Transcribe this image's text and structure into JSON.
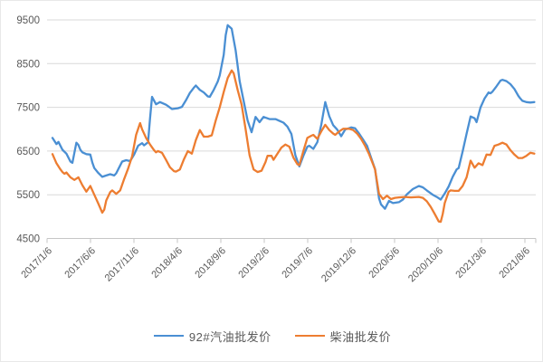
{
  "chart_data": {
    "type": "line",
    "title": "",
    "grid": "horizontal",
    "legend_position": "bottom",
    "colors": {
      "gridline": "#d9d9d9",
      "axis_line": "#c6c6c6",
      "tick_label": "#595959",
      "series_gasoline": "#4a8fd3",
      "series_diesel": "#ed7d31"
    },
    "y_axis": {
      "min": 4500,
      "max": 9500,
      "step": 1000,
      "ticks": [
        "9500",
        "8500",
        "7500",
        "6500",
        "5500",
        "4500"
      ]
    },
    "x_axis": {
      "unit": "weeks since 2017/1/6",
      "tick_labels": [
        "2017/1/6",
        "2017/6/6",
        "2017/11/6",
        "2018/4/6",
        "2018/9/6",
        "2019/2/6",
        "2019/7/6",
        "2019/12/6",
        "2020/5/6",
        "2020/10/6",
        "2021/3/6",
        "2021/8/6"
      ]
    },
    "series": [
      {
        "name": "92#汽油批发价",
        "color": "#4a8fd3",
        "points": [
          [
            0,
            6800
          ],
          [
            2,
            6660
          ],
          [
            3,
            6710
          ],
          [
            5,
            6530
          ],
          [
            7,
            6440
          ],
          [
            9,
            6260
          ],
          [
            10,
            6230
          ],
          [
            11,
            6460
          ],
          [
            12,
            6690
          ],
          [
            13,
            6640
          ],
          [
            14,
            6530
          ],
          [
            15,
            6470
          ],
          [
            17,
            6430
          ],
          [
            19,
            6420
          ],
          [
            20,
            6240
          ],
          [
            21,
            6110
          ],
          [
            23,
            6000
          ],
          [
            25,
            5910
          ],
          [
            27,
            5940
          ],
          [
            29,
            5970
          ],
          [
            31,
            5940
          ],
          [
            32,
            5990
          ],
          [
            34,
            6170
          ],
          [
            35,
            6260
          ],
          [
            37,
            6290
          ],
          [
            39,
            6270
          ],
          [
            41,
            6420
          ],
          [
            43,
            6620
          ],
          [
            45,
            6680
          ],
          [
            46,
            6630
          ],
          [
            48,
            6700
          ],
          [
            49,
            7250
          ],
          [
            50,
            7740
          ],
          [
            52,
            7570
          ],
          [
            54,
            7620
          ],
          [
            57,
            7560
          ],
          [
            58,
            7530
          ],
          [
            60,
            7460
          ],
          [
            63,
            7480
          ],
          [
            65,
            7510
          ],
          [
            67,
            7660
          ],
          [
            69,
            7830
          ],
          [
            71,
            7950
          ],
          [
            72,
            8000
          ],
          [
            74,
            7900
          ],
          [
            76,
            7840
          ],
          [
            78,
            7750
          ],
          [
            79,
            7740
          ],
          [
            81,
            7900
          ],
          [
            83,
            8090
          ],
          [
            84,
            8230
          ],
          [
            86,
            8700
          ],
          [
            87,
            9150
          ],
          [
            88,
            9380
          ],
          [
            90,
            9300
          ],
          [
            92,
            8800
          ],
          [
            94,
            8100
          ],
          [
            96,
            7650
          ],
          [
            98,
            7200
          ],
          [
            100,
            6930
          ],
          [
            102,
            7280
          ],
          [
            104,
            7160
          ],
          [
            106,
            7280
          ],
          [
            109,
            7230
          ],
          [
            112,
            7230
          ],
          [
            114,
            7190
          ],
          [
            116,
            7150
          ],
          [
            118,
            7060
          ],
          [
            120,
            6890
          ],
          [
            122,
            6400
          ],
          [
            124,
            6150
          ],
          [
            126,
            6390
          ],
          [
            128,
            6600
          ],
          [
            129,
            6620
          ],
          [
            131,
            6550
          ],
          [
            133,
            6700
          ],
          [
            135,
            7100
          ],
          [
            137,
            7620
          ],
          [
            139,
            7300
          ],
          [
            141,
            7090
          ],
          [
            143,
            6990
          ],
          [
            145,
            6840
          ],
          [
            147,
            6990
          ],
          [
            150,
            7040
          ],
          [
            152,
            7020
          ],
          [
            154,
            6900
          ],
          [
            156,
            6760
          ],
          [
            158,
            6620
          ],
          [
            160,
            6350
          ],
          [
            162,
            6090
          ],
          [
            164,
            5420
          ],
          [
            165,
            5280
          ],
          [
            167,
            5180
          ],
          [
            169,
            5360
          ],
          [
            171,
            5310
          ],
          [
            174,
            5330
          ],
          [
            176,
            5390
          ],
          [
            178,
            5510
          ],
          [
            181,
            5630
          ],
          [
            184,
            5700
          ],
          [
            186,
            5670
          ],
          [
            188,
            5600
          ],
          [
            191,
            5500
          ],
          [
            193,
            5450
          ],
          [
            195,
            5390
          ],
          [
            197,
            5530
          ],
          [
            199,
            5690
          ],
          [
            201,
            5910
          ],
          [
            203,
            6080
          ],
          [
            204,
            6110
          ],
          [
            206,
            6490
          ],
          [
            208,
            6900
          ],
          [
            210,
            7290
          ],
          [
            212,
            7250
          ],
          [
            213,
            7160
          ],
          [
            215,
            7500
          ],
          [
            217,
            7700
          ],
          [
            219,
            7840
          ],
          [
            220,
            7820
          ],
          [
            221,
            7860
          ],
          [
            223,
            7980
          ],
          [
            225,
            8110
          ],
          [
            226,
            8130
          ],
          [
            228,
            8100
          ],
          [
            230,
            8030
          ],
          [
            232,
            7920
          ],
          [
            234,
            7760
          ],
          [
            235,
            7700
          ],
          [
            236,
            7650
          ],
          [
            238,
            7620
          ],
          [
            240,
            7610
          ],
          [
            242,
            7620
          ]
        ]
      },
      {
        "name": "柴油批发价",
        "color": "#ed7d31",
        "points": [
          [
            0,
            6430
          ],
          [
            2,
            6220
          ],
          [
            4,
            6080
          ],
          [
            5,
            6020
          ],
          [
            6,
            5980
          ],
          [
            7,
            6010
          ],
          [
            9,
            5900
          ],
          [
            11,
            5840
          ],
          [
            13,
            5900
          ],
          [
            15,
            5720
          ],
          [
            17,
            5570
          ],
          [
            19,
            5700
          ],
          [
            21,
            5500
          ],
          [
            23,
            5300
          ],
          [
            25,
            5090
          ],
          [
            26,
            5160
          ],
          [
            27,
            5370
          ],
          [
            29,
            5560
          ],
          [
            30,
            5600
          ],
          [
            31,
            5560
          ],
          [
            32,
            5520
          ],
          [
            34,
            5600
          ],
          [
            36,
            5860
          ],
          [
            38,
            6100
          ],
          [
            40,
            6380
          ],
          [
            42,
            6870
          ],
          [
            44,
            7140
          ],
          [
            45,
            7000
          ],
          [
            47,
            6800
          ],
          [
            49,
            6650
          ],
          [
            51,
            6520
          ],
          [
            52,
            6470
          ],
          [
            53,
            6500
          ],
          [
            55,
            6460
          ],
          [
            57,
            6300
          ],
          [
            59,
            6130
          ],
          [
            61,
            6040
          ],
          [
            62,
            6030
          ],
          [
            64,
            6080
          ],
          [
            66,
            6310
          ],
          [
            68,
            6500
          ],
          [
            70,
            6440
          ],
          [
            72,
            6750
          ],
          [
            74,
            6980
          ],
          [
            76,
            6830
          ],
          [
            78,
            6830
          ],
          [
            80,
            6860
          ],
          [
            82,
            7200
          ],
          [
            84,
            7500
          ],
          [
            86,
            7850
          ],
          [
            88,
            8170
          ],
          [
            90,
            8345
          ],
          [
            91,
            8280
          ],
          [
            93,
            7900
          ],
          [
            95,
            7560
          ],
          [
            97,
            7000
          ],
          [
            99,
            6400
          ],
          [
            101,
            6080
          ],
          [
            103,
            6020
          ],
          [
            105,
            6050
          ],
          [
            107,
            6250
          ],
          [
            108,
            6390
          ],
          [
            110,
            6390
          ],
          [
            111,
            6300
          ],
          [
            113,
            6440
          ],
          [
            115,
            6580
          ],
          [
            117,
            6650
          ],
          [
            119,
            6600
          ],
          [
            121,
            6350
          ],
          [
            123,
            6200
          ],
          [
            124,
            6180
          ],
          [
            126,
            6500
          ],
          [
            128,
            6800
          ],
          [
            130,
            6850
          ],
          [
            131,
            6870
          ],
          [
            133,
            6780
          ],
          [
            135,
            6950
          ],
          [
            137,
            7100
          ],
          [
            139,
            6980
          ],
          [
            141,
            6900
          ],
          [
            142,
            6870
          ],
          [
            144,
            6950
          ],
          [
            146,
            7010
          ],
          [
            149,
            7010
          ],
          [
            151,
            6980
          ],
          [
            153,
            6900
          ],
          [
            155,
            6780
          ],
          [
            157,
            6620
          ],
          [
            159,
            6430
          ],
          [
            161,
            6200
          ],
          [
            162,
            6080
          ],
          [
            163,
            5800
          ],
          [
            164,
            5520
          ],
          [
            166,
            5400
          ],
          [
            168,
            5480
          ],
          [
            170,
            5400
          ],
          [
            172,
            5430
          ],
          [
            174,
            5440
          ],
          [
            177,
            5450
          ],
          [
            180,
            5440
          ],
          [
            184,
            5450
          ],
          [
            186,
            5430
          ],
          [
            188,
            5350
          ],
          [
            190,
            5220
          ],
          [
            192,
            5060
          ],
          [
            194,
            4890
          ],
          [
            195,
            4880
          ],
          [
            196,
            5060
          ],
          [
            197,
            5310
          ],
          [
            199,
            5570
          ],
          [
            200,
            5600
          ],
          [
            202,
            5590
          ],
          [
            204,
            5590
          ],
          [
            206,
            5700
          ],
          [
            208,
            5900
          ],
          [
            210,
            6280
          ],
          [
            212,
            6120
          ],
          [
            214,
            6220
          ],
          [
            216,
            6180
          ],
          [
            218,
            6420
          ],
          [
            220,
            6410
          ],
          [
            222,
            6620
          ],
          [
            224,
            6650
          ],
          [
            226,
            6690
          ],
          [
            228,
            6650
          ],
          [
            230,
            6520
          ],
          [
            232,
            6420
          ],
          [
            234,
            6340
          ],
          [
            236,
            6340
          ],
          [
            238,
            6390
          ],
          [
            240,
            6460
          ],
          [
            242,
            6440
          ]
        ]
      }
    ]
  },
  "legend": {
    "items": [
      {
        "label": "92#汽油批发价",
        "color": "#4a8fd3"
      },
      {
        "label": "柴油批发价",
        "color": "#ed7d31"
      }
    ]
  }
}
